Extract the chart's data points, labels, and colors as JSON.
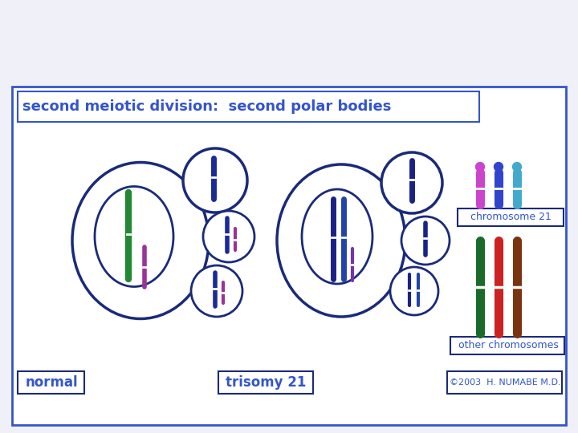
{
  "title": "second meiotic division:  second polar bodies",
  "title_color": "#3355cc",
  "bg_color": "#f0f0f8",
  "inner_bg": "#ffffff",
  "border_color": "#1a2a7a",
  "border_outer": "#3355cc",
  "label_normal": "normal",
  "label_trisomy": "trisomy 21",
  "label_chr21": "chromosome 21",
  "label_other": "other chromosomes",
  "label_copyright": "©2003  H. NUMABE M.D.",
  "label_color": "#3355cc",
  "chr21_colors": [
    "#cc44cc",
    "#3344cc",
    "#44aacc"
  ],
  "other_chr_colors": [
    "#1a6b2a",
    "#cc2222",
    "#7a3311"
  ]
}
